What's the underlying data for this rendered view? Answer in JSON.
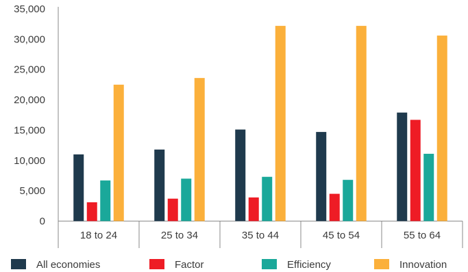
{
  "chart_data": {
    "type": "bar",
    "title": "",
    "xlabel": "",
    "ylabel": "",
    "categories": [
      "18 to 24",
      "25 to 34",
      "35 to 44",
      "45 to 54",
      "55 to 64"
    ],
    "ylim": [
      0,
      35000
    ],
    "yticks": [
      0,
      5000,
      10000,
      15000,
      20000,
      25000,
      30000,
      35000
    ],
    "ytick_labels": [
      "0",
      "5,000",
      "10,000",
      "15,000",
      "20,000",
      "25,000",
      "30,000",
      "35,000"
    ],
    "grid": false,
    "legend_position": "bottom",
    "series": [
      {
        "name": "All economies",
        "color": "#1f3a4d",
        "values": [
          11000,
          11800,
          15100,
          14700,
          17900
        ]
      },
      {
        "name": "Factor",
        "color": "#ee1c25",
        "values": [
          3100,
          3700,
          3900,
          4500,
          16700
        ]
      },
      {
        "name": "Efficiency",
        "color": "#1aa89a",
        "values": [
          6700,
          7000,
          7300,
          6800,
          11100
        ]
      },
      {
        "name": "Innovation",
        "color": "#fbb03b",
        "values": [
          22500,
          23600,
          32200,
          32200,
          30600
        ]
      }
    ]
  }
}
